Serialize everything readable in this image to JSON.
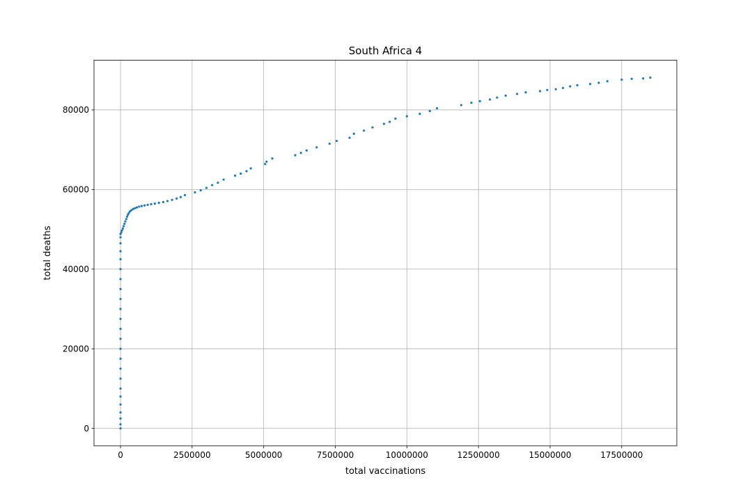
{
  "chart_data": {
    "type": "scatter",
    "title": "South Africa 4",
    "xlabel": "total vaccinations",
    "ylabel": "total deaths",
    "xlim": [
      -925000,
      19425000
    ],
    "ylim": [
      -4400,
      92500
    ],
    "grid": true,
    "marker_color": "#1f77b4",
    "x_ticks": [
      0,
      2500000,
      5000000,
      7500000,
      10000000,
      12500000,
      15000000,
      17500000
    ],
    "x_tick_labels": [
      "0",
      "2500000",
      "5000000",
      "7500000",
      "10000000",
      "12500000",
      "15000000",
      "17500000"
    ],
    "y_ticks": [
      0,
      20000,
      40000,
      60000,
      80000
    ],
    "y_tick_labels": [
      "0",
      "20000",
      "40000",
      "60000",
      "80000"
    ],
    "series": [
      {
        "name": "total deaths",
        "points": [
          [
            0,
            0
          ],
          [
            0,
            1000
          ],
          [
            0,
            2500
          ],
          [
            0,
            4000
          ],
          [
            0,
            6000
          ],
          [
            0,
            8000
          ],
          [
            0,
            10000
          ],
          [
            0,
            12500
          ],
          [
            0,
            15000
          ],
          [
            0,
            17500
          ],
          [
            0,
            20000
          ],
          [
            0,
            22500
          ],
          [
            0,
            25000
          ],
          [
            0,
            27500
          ],
          [
            0,
            30000
          ],
          [
            0,
            32500
          ],
          [
            0,
            35000
          ],
          [
            0,
            37500
          ],
          [
            0,
            40000
          ],
          [
            0,
            42500
          ],
          [
            0,
            44500
          ],
          [
            0,
            46500
          ],
          [
            0,
            48000
          ],
          [
            0,
            48800
          ],
          [
            25000,
            49200
          ],
          [
            50000,
            49700
          ],
          [
            80000,
            50200
          ],
          [
            110000,
            50800
          ],
          [
            140000,
            51400
          ],
          [
            170000,
            52000
          ],
          [
            200000,
            52600
          ],
          [
            230000,
            53200
          ],
          [
            260000,
            53700
          ],
          [
            290000,
            54100
          ],
          [
            330000,
            54500
          ],
          [
            380000,
            54800
          ],
          [
            440000,
            55100
          ],
          [
            500000,
            55300
          ],
          [
            570000,
            55500
          ],
          [
            650000,
            55700
          ],
          [
            740000,
            55850
          ],
          [
            840000,
            56000
          ],
          [
            950000,
            56150
          ],
          [
            1070000,
            56300
          ],
          [
            1200000,
            56450
          ],
          [
            1340000,
            56650
          ],
          [
            1490000,
            56850
          ],
          [
            1640000,
            57100
          ],
          [
            1800000,
            57400
          ],
          [
            1960000,
            57750
          ],
          [
            2100000,
            58100
          ],
          [
            2250000,
            58600
          ],
          [
            2600000,
            59300
          ],
          [
            2800000,
            59800
          ],
          [
            3000000,
            60400
          ],
          [
            3200000,
            61100
          ],
          [
            3400000,
            61700
          ],
          [
            3600000,
            62500
          ],
          [
            4000000,
            63500
          ],
          [
            4200000,
            64000
          ],
          [
            4400000,
            64600
          ],
          [
            4550000,
            65300
          ],
          [
            5050000,
            66400
          ],
          [
            5100000,
            67000
          ],
          [
            5300000,
            67800
          ],
          [
            6100000,
            68600
          ],
          [
            6300000,
            69200
          ],
          [
            6500000,
            69800
          ],
          [
            6850000,
            70600
          ],
          [
            7300000,
            71500
          ],
          [
            7550000,
            72200
          ],
          [
            8000000,
            73000
          ],
          [
            8150000,
            74000
          ],
          [
            8500000,
            74800
          ],
          [
            8800000,
            75600
          ],
          [
            9200000,
            76500
          ],
          [
            9400000,
            77000
          ],
          [
            9600000,
            77800
          ],
          [
            10000000,
            78400
          ],
          [
            10450000,
            79000
          ],
          [
            10800000,
            79700
          ],
          [
            11050000,
            80400
          ],
          [
            11900000,
            81200
          ],
          [
            12250000,
            81800
          ],
          [
            12550000,
            82200
          ],
          [
            12900000,
            82600
          ],
          [
            13150000,
            83100
          ],
          [
            13450000,
            83600
          ],
          [
            13850000,
            84000
          ],
          [
            14150000,
            84400
          ],
          [
            14650000,
            84700
          ],
          [
            14900000,
            85000
          ],
          [
            15200000,
            85200
          ],
          [
            15450000,
            85500
          ],
          [
            15700000,
            85900
          ],
          [
            15950000,
            86200
          ],
          [
            16400000,
            86500
          ],
          [
            16700000,
            86800
          ],
          [
            17000000,
            87200
          ],
          [
            17500000,
            87600
          ],
          [
            17850000,
            87800
          ],
          [
            18250000,
            87900
          ],
          [
            18500000,
            88100
          ]
        ]
      }
    ]
  }
}
